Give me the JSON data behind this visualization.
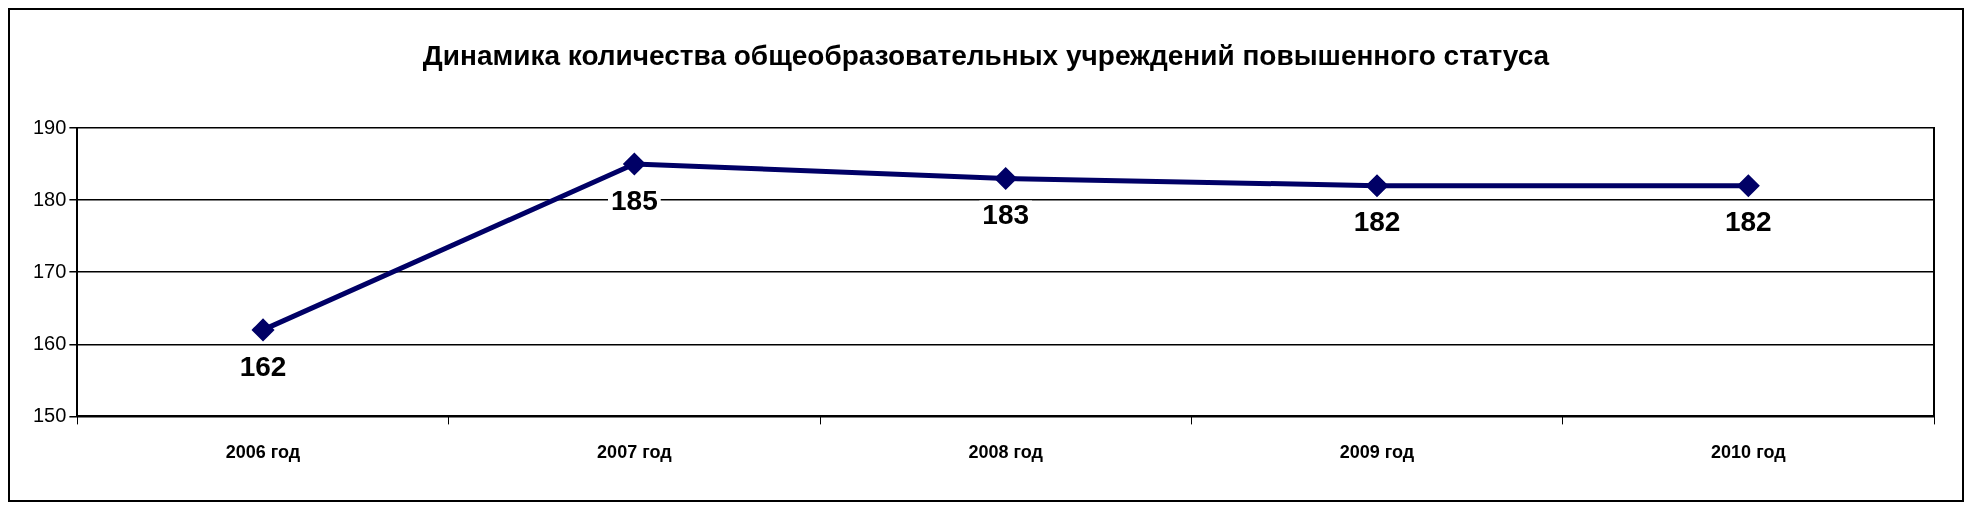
{
  "chart_data": {
    "type": "line",
    "title": "Динамика количества общеобразовательных учреждений повышенного статуса",
    "categories": [
      "2006 год",
      "2007 год",
      "2008 год",
      "2009 год",
      "2010 год"
    ],
    "series": [
      {
        "color": "#000066",
        "values": [
          162,
          185,
          183,
          182,
          182
        ]
      }
    ],
    "ylim": [
      150,
      190
    ],
    "yticks": [
      150,
      160,
      170,
      180,
      190
    ],
    "grid": "y",
    "legend": false,
    "marker": "diamond",
    "line_style": "solid",
    "data_labels": true
  }
}
